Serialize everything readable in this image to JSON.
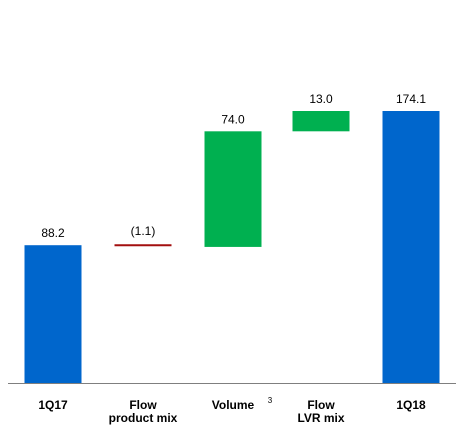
{
  "chart_data": {
    "type": "bar",
    "subtype": "waterfall",
    "categories": [
      {
        "lines": [
          "1Q17"
        ],
        "superscript": ""
      },
      {
        "lines": [
          "Flow",
          "product mix"
        ],
        "superscript": ""
      },
      {
        "lines": [
          "Volume"
        ],
        "superscript": "3"
      },
      {
        "lines": [
          "Flow",
          "LVR mix"
        ],
        "superscript": ""
      },
      {
        "lines": [
          "1Q18"
        ],
        "superscript": ""
      }
    ],
    "steps": [
      {
        "kind": "total",
        "value": 88.2,
        "label": "88.2"
      },
      {
        "kind": "delta",
        "value": -1.1,
        "label": "(1.1)"
      },
      {
        "kind": "delta",
        "value": 74.0,
        "label": "74.0"
      },
      {
        "kind": "delta",
        "value": 13.0,
        "label": "13.0"
      },
      {
        "kind": "total",
        "value": 174.1,
        "label": "174.1"
      }
    ],
    "ylim": [
      0,
      174.1
    ],
    "grid": false,
    "legend": "none",
    "colors": {
      "total": "#0066cc",
      "increase": "#00b050",
      "decrease": "#a30f0f",
      "axis": "#7f7f7f"
    }
  }
}
